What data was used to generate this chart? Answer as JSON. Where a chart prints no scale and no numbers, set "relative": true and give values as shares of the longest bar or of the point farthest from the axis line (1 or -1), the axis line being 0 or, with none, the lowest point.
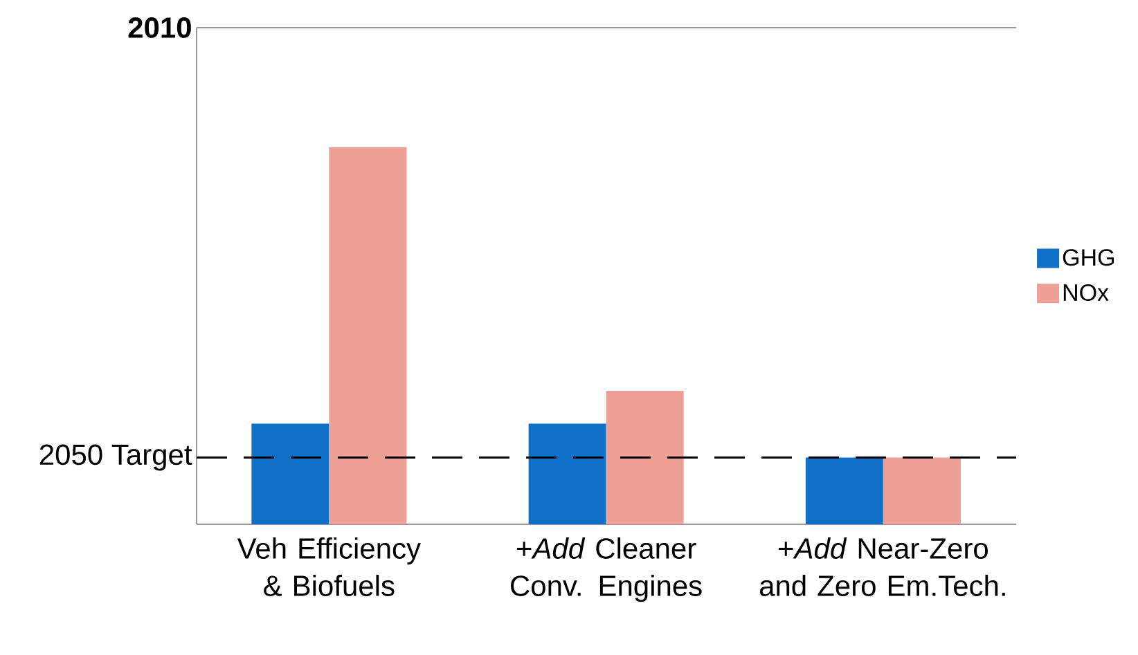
{
  "chart_data": {
    "type": "bar",
    "relative": true,
    "categories": [
      "Veh Efficiency & Biofuels",
      "+*Add* Cleaner Conv. Engines",
      "+*Add*  Near-Zero and Zero Em.Tech."
    ],
    "series": [
      {
        "name": "GHG",
        "color": "#1170c8",
        "values": [
          0.267,
          0.267,
          0.177
        ]
      },
      {
        "name": "NOx",
        "color": "#eea096",
        "values": [
          1,
          0.354,
          0.177
        ]
      }
    ],
    "ref_lines": [
      {
        "axis": "y",
        "value": 0.177,
        "label": "2050 Target",
        "color": "#000000",
        "line_style": "dashed"
      }
    ],
    "annotations": [
      "2010"
    ],
    "legend": "right"
  }
}
